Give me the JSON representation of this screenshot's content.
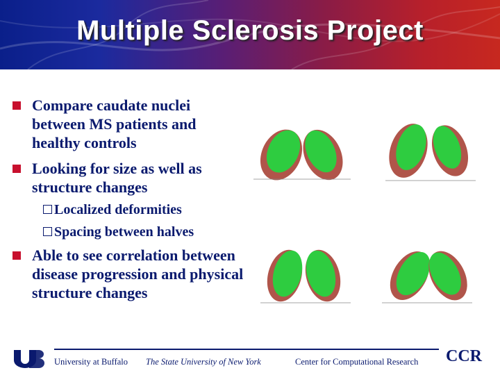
{
  "slide": {
    "title": "Multiple Sclerosis Project"
  },
  "bullets": [
    {
      "text": "Compare caudate nuclei between MS patients and healthy controls"
    },
    {
      "text": "Looking for size as well as structure changes"
    },
    {
      "text": "Able to see correlation between disease progression and physical structure changes"
    }
  ],
  "sub_bullets": [
    {
      "text": "Localized deformities"
    },
    {
      "text": "Spacing between halves"
    }
  ],
  "footer": {
    "university": "University at Buffalo",
    "suny": "The State University of New York",
    "center": "Center for Computational Research",
    "ccr": "CCR"
  },
  "colors": {
    "accent_red": "#c8102e",
    "text_navy": "#0a1a6e",
    "nucleus_green": "#2ecc40",
    "nucleus_brown": "#b0554a"
  }
}
